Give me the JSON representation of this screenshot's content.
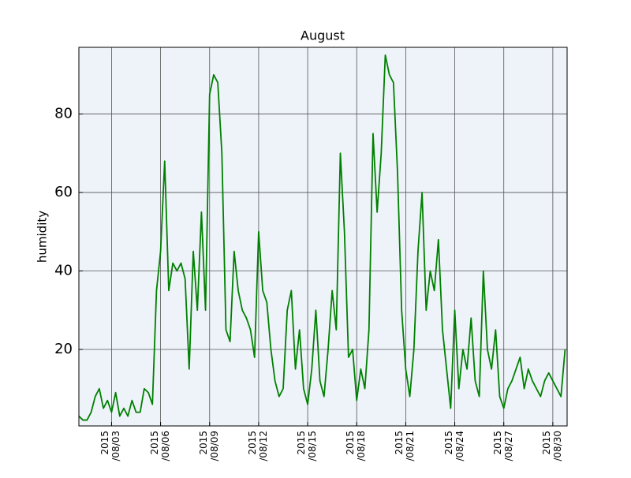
{
  "chart_data": {
    "type": "line",
    "title": "August",
    "y_label": "humidity",
    "x": [
      "2015-08-01T00:00",
      "2015-08-01T06:00",
      "2015-08-01T12:00",
      "2015-08-01T18:00",
      "2015-08-02T00:00",
      "2015-08-02T06:00",
      "2015-08-02T12:00",
      "2015-08-02T18:00",
      "2015-08-03T00:00",
      "2015-08-03T06:00",
      "2015-08-03T12:00",
      "2015-08-03T18:00",
      "2015-08-04T00:00",
      "2015-08-04T06:00",
      "2015-08-04T12:00",
      "2015-08-04T18:00",
      "2015-08-05T00:00",
      "2015-08-05T06:00",
      "2015-08-05T12:00",
      "2015-08-05T18:00",
      "2015-08-06T00:00",
      "2015-08-06T06:00",
      "2015-08-06T12:00",
      "2015-08-06T18:00",
      "2015-08-07T00:00",
      "2015-08-07T06:00",
      "2015-08-07T12:00",
      "2015-08-07T18:00",
      "2015-08-08T00:00",
      "2015-08-08T06:00",
      "2015-08-08T12:00",
      "2015-08-08T18:00",
      "2015-08-09T00:00",
      "2015-08-09T06:00",
      "2015-08-09T12:00",
      "2015-08-09T18:00",
      "2015-08-10T00:00",
      "2015-08-10T06:00",
      "2015-08-10T12:00",
      "2015-08-10T18:00",
      "2015-08-11T00:00",
      "2015-08-11T06:00",
      "2015-08-11T12:00",
      "2015-08-11T18:00",
      "2015-08-12T00:00",
      "2015-08-12T06:00",
      "2015-08-12T12:00",
      "2015-08-12T18:00",
      "2015-08-13T00:00",
      "2015-08-13T06:00",
      "2015-08-13T12:00",
      "2015-08-13T18:00",
      "2015-08-14T00:00",
      "2015-08-14T06:00",
      "2015-08-14T12:00",
      "2015-08-14T18:00",
      "2015-08-15T00:00",
      "2015-08-15T06:00",
      "2015-08-15T12:00",
      "2015-08-15T18:00",
      "2015-08-16T00:00",
      "2015-08-16T06:00",
      "2015-08-16T12:00",
      "2015-08-16T18:00",
      "2015-08-17T00:00",
      "2015-08-17T06:00",
      "2015-08-17T12:00",
      "2015-08-17T18:00",
      "2015-08-18T00:00",
      "2015-08-18T06:00",
      "2015-08-18T12:00",
      "2015-08-18T18:00",
      "2015-08-19T00:00",
      "2015-08-19T06:00",
      "2015-08-19T12:00",
      "2015-08-19T18:00",
      "2015-08-20T00:00",
      "2015-08-20T06:00",
      "2015-08-20T12:00",
      "2015-08-20T18:00",
      "2015-08-21T00:00",
      "2015-08-21T06:00",
      "2015-08-21T12:00",
      "2015-08-21T18:00",
      "2015-08-22T00:00",
      "2015-08-22T06:00",
      "2015-08-22T12:00",
      "2015-08-22T18:00",
      "2015-08-23T00:00",
      "2015-08-23T06:00",
      "2015-08-23T12:00",
      "2015-08-23T18:00",
      "2015-08-24T00:00",
      "2015-08-24T06:00",
      "2015-08-24T12:00",
      "2015-08-24T18:00",
      "2015-08-25T00:00",
      "2015-08-25T06:00",
      "2015-08-25T12:00",
      "2015-08-25T18:00",
      "2015-08-26T00:00",
      "2015-08-26T06:00",
      "2015-08-26T12:00",
      "2015-08-26T18:00",
      "2015-08-27T00:00",
      "2015-08-27T06:00",
      "2015-08-27T12:00",
      "2015-08-27T18:00",
      "2015-08-28T00:00",
      "2015-08-28T06:00",
      "2015-08-28T12:00",
      "2015-08-28T18:00",
      "2015-08-29T00:00",
      "2015-08-29T06:00",
      "2015-08-29T12:00",
      "2015-08-29T18:00",
      "2015-08-30T00:00",
      "2015-08-30T06:00",
      "2015-08-30T12:00",
      "2015-08-30T18:00"
    ],
    "series": [
      {
        "color": "#008000",
        "values": [
          3,
          2,
          2,
          4,
          8,
          10,
          5,
          7,
          4,
          9,
          3,
          5,
          3,
          7,
          4,
          4,
          10,
          9,
          6,
          35,
          45,
          68,
          35,
          42,
          40,
          42,
          38,
          15,
          45,
          30,
          55,
          30,
          85,
          90,
          88,
          70,
          25,
          22,
          45,
          35,
          30,
          28,
          25,
          18,
          50,
          35,
          32,
          20,
          12,
          8,
          10,
          30,
          35,
          15,
          25,
          10,
          6,
          15,
          30,
          12,
          8,
          20,
          35,
          25,
          70,
          50,
          18,
          20,
          7,
          15,
          10,
          25,
          75,
          55,
          70,
          95,
          90,
          88,
          65,
          30,
          15,
          8,
          20,
          45,
          60,
          30,
          40,
          35,
          48,
          25,
          15,
          5,
          30,
          10,
          20,
          15,
          28,
          12,
          8,
          40,
          20,
          15,
          25,
          8,
          5,
          10,
          12,
          15,
          18,
          10,
          15,
          12,
          10,
          8,
          12,
          14,
          12,
          10,
          8,
          20
        ]
      }
    ],
    "xlim": [
      "2015-08-01T00:00",
      "2015-08-30T21:00"
    ],
    "xticks": [
      {
        "value": "2015-08-03T00:00",
        "label": "2015\n/08/03"
      },
      {
        "value": "2015-08-06T00:00",
        "label": "2015\n/08/06"
      },
      {
        "value": "2015-08-09T00:00",
        "label": "2015\n/08/09"
      },
      {
        "value": "2015-08-12T00:00",
        "label": "2015\n/08/12"
      },
      {
        "value": "2015-08-15T00:00",
        "label": "2015\n/08/15"
      },
      {
        "value": "2015-08-18T00:00",
        "label": "2015\n/08/18"
      },
      {
        "value": "2015-08-21T00:00",
        "label": "2015\n/08/21"
      },
      {
        "value": "2015-08-24T00:00",
        "label": "2015\n/08/24"
      },
      {
        "value": "2015-08-27T00:00",
        "label": "2015\n/08/27"
      },
      {
        "value": "2015-08-30T00:00",
        "label": "2015\n/08/30"
      }
    ],
    "ylim": [
      0.5,
      97
    ],
    "yticks": [
      20,
      40,
      60,
      80
    ],
    "grid": true
  }
}
